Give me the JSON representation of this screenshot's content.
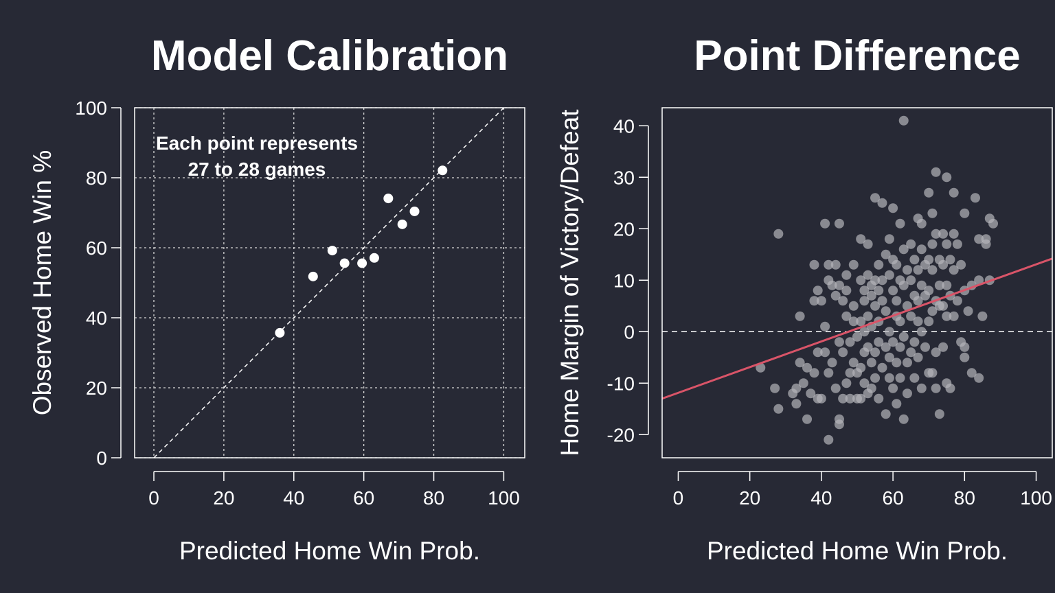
{
  "colors": {
    "background": "#272935",
    "foreground": "#ffffff",
    "point_right": "#b4b4b9",
    "fit_line": "#d95468"
  },
  "chart_data": [
    {
      "type": "scatter",
      "title": "Model Calibration",
      "xlabel": "Predicted Home Win Prob.",
      "ylabel": "Observed Home Win %",
      "xlim": [
        -5.5,
        106
      ],
      "ylim": [
        0,
        100
      ],
      "xticks": [
        0,
        20,
        40,
        60,
        80,
        100
      ],
      "yticks": [
        0,
        20,
        40,
        60,
        80,
        100
      ],
      "grid": true,
      "grid_values": [
        0,
        20,
        40,
        60,
        80,
        100
      ],
      "reference_line": "y = x (dashed)",
      "annotation": [
        "Each point represents",
        "27 to 28 games"
      ],
      "points": [
        {
          "x": 36,
          "y": 35.7
        },
        {
          "x": 45.5,
          "y": 51.8
        },
        {
          "x": 51,
          "y": 59.2
        },
        {
          "x": 54.5,
          "y": 55.6
        },
        {
          "x": 59.5,
          "y": 55.6
        },
        {
          "x": 63,
          "y": 57.1
        },
        {
          "x": 67,
          "y": 74.1
        },
        {
          "x": 71,
          "y": 66.7
        },
        {
          "x": 74.5,
          "y": 70.4
        },
        {
          "x": 82.5,
          "y": 82.1
        }
      ]
    },
    {
      "type": "scatter",
      "title": "Point Difference",
      "xlabel": "Predicted Home Win Prob.",
      "ylabel": "Home Margin of Victory/Defeat",
      "xlim": [
        -4.5,
        104.5
      ],
      "ylim": [
        -24.5,
        43.5
      ],
      "xticks": [
        0,
        20,
        40,
        60,
        80,
        100
      ],
      "yticks": [
        -20,
        -10,
        0,
        10,
        20,
        30,
        40
      ],
      "grid": false,
      "reference_line": "y = 0 (dashed)",
      "fit_line": {
        "x": [
          -4.5,
          104.5
        ],
        "y": [
          -13.0,
          14.2
        ]
      },
      "points": [
        {
          "x": 23,
          "y": -7
        },
        {
          "x": 28,
          "y": 19
        },
        {
          "x": 28,
          "y": -15
        },
        {
          "x": 27,
          "y": -11
        },
        {
          "x": 32,
          "y": -12
        },
        {
          "x": 33,
          "y": -11
        },
        {
          "x": 33,
          "y": -14
        },
        {
          "x": 34,
          "y": 3
        },
        {
          "x": 34,
          "y": -6
        },
        {
          "x": 35,
          "y": -10
        },
        {
          "x": 36,
          "y": -17
        },
        {
          "x": 36,
          "y": -7
        },
        {
          "x": 37,
          "y": -12
        },
        {
          "x": 38,
          "y": 13
        },
        {
          "x": 38,
          "y": 6
        },
        {
          "x": 38,
          "y": -8
        },
        {
          "x": 39,
          "y": 8
        },
        {
          "x": 39,
          "y": -4
        },
        {
          "x": 39,
          "y": -13
        },
        {
          "x": 40,
          "y": 6
        },
        {
          "x": 40,
          "y": -13
        },
        {
          "x": 41,
          "y": 1
        },
        {
          "x": 41,
          "y": 21
        },
        {
          "x": 41,
          "y": -4
        },
        {
          "x": 42,
          "y": 13
        },
        {
          "x": 42,
          "y": 10
        },
        {
          "x": 42,
          "y": -8
        },
        {
          "x": 42,
          "y": -21
        },
        {
          "x": 43,
          "y": 9
        },
        {
          "x": 43,
          "y": -6
        },
        {
          "x": 44,
          "y": 13
        },
        {
          "x": 44,
          "y": 7
        },
        {
          "x": 44,
          "y": -11
        },
        {
          "x": 45,
          "y": 21
        },
        {
          "x": 45,
          "y": 9
        },
        {
          "x": 45,
          "y": -2
        },
        {
          "x": 45,
          "y": -17
        },
        {
          "x": 45,
          "y": -18
        },
        {
          "x": 46,
          "y": 6
        },
        {
          "x": 46,
          "y": -13
        },
        {
          "x": 46,
          "y": -4
        },
        {
          "x": 47,
          "y": 8
        },
        {
          "x": 47,
          "y": 11
        },
        {
          "x": 47,
          "y": 3
        },
        {
          "x": 47,
          "y": -10
        },
        {
          "x": 48,
          "y": -2
        },
        {
          "x": 48,
          "y": -8
        },
        {
          "x": 48,
          "y": -13
        },
        {
          "x": 49,
          "y": 5
        },
        {
          "x": 49,
          "y": 13
        },
        {
          "x": 49,
          "y": 2
        },
        {
          "x": 49,
          "y": -6
        },
        {
          "x": 50,
          "y": -1
        },
        {
          "x": 50,
          "y": -8
        },
        {
          "x": 50,
          "y": -13
        },
        {
          "x": 51,
          "y": 18
        },
        {
          "x": 51,
          "y": 10
        },
        {
          "x": 51,
          "y": 2
        },
        {
          "x": 51,
          "y": -7
        },
        {
          "x": 51,
          "y": -13
        },
        {
          "x": 52,
          "y": 8
        },
        {
          "x": 52,
          "y": 6
        },
        {
          "x": 52,
          "y": 0
        },
        {
          "x": 52,
          "y": -4
        },
        {
          "x": 52,
          "y": -10
        },
        {
          "x": 53,
          "y": 17
        },
        {
          "x": 53,
          "y": 11
        },
        {
          "x": 53,
          "y": 3
        },
        {
          "x": 53,
          "y": -3
        },
        {
          "x": 53,
          "y": -12
        },
        {
          "x": 54,
          "y": 7
        },
        {
          "x": 54,
          "y": 9
        },
        {
          "x": 54,
          "y": 1
        },
        {
          "x": 54,
          "y": -6
        },
        {
          "x": 54,
          "y": -11
        },
        {
          "x": 55,
          "y": 10
        },
        {
          "x": 55,
          "y": 26
        },
        {
          "x": 55,
          "y": 5
        },
        {
          "x": 55,
          "y": -4
        },
        {
          "x": 55,
          "y": -9
        },
        {
          "x": 56,
          "y": 13
        },
        {
          "x": 56,
          "y": 8
        },
        {
          "x": 56,
          "y": 2
        },
        {
          "x": 56,
          "y": -2
        },
        {
          "x": 56,
          "y": -13
        },
        {
          "x": 57,
          "y": 25
        },
        {
          "x": 57,
          "y": 6
        },
        {
          "x": 57,
          "y": 10
        },
        {
          "x": 57,
          "y": -7
        },
        {
          "x": 58,
          "y": 15
        },
        {
          "x": 58,
          "y": 4
        },
        {
          "x": 58,
          "y": -3
        },
        {
          "x": 58,
          "y": -16
        },
        {
          "x": 59,
          "y": 18
        },
        {
          "x": 59,
          "y": 11
        },
        {
          "x": 59,
          "y": 0
        },
        {
          "x": 59,
          "y": -5
        },
        {
          "x": 59,
          "y": -9
        },
        {
          "x": 60,
          "y": 24
        },
        {
          "x": 60,
          "y": 14
        },
        {
          "x": 60,
          "y": 8
        },
        {
          "x": 60,
          "y": -2
        },
        {
          "x": 60,
          "y": -11
        },
        {
          "x": 61,
          "y": 13
        },
        {
          "x": 61,
          "y": 6
        },
        {
          "x": 61,
          "y": 3
        },
        {
          "x": 61,
          "y": -6
        },
        {
          "x": 61,
          "y": -14
        },
        {
          "x": 62,
          "y": 21
        },
        {
          "x": 62,
          "y": 10
        },
        {
          "x": 62,
          "y": 2
        },
        {
          "x": 62,
          "y": -3
        },
        {
          "x": 62,
          "y": -9
        },
        {
          "x": 63,
          "y": 41
        },
        {
          "x": 63,
          "y": 16
        },
        {
          "x": 63,
          "y": 9
        },
        {
          "x": 63,
          "y": -1
        },
        {
          "x": 63,
          "y": -17
        },
        {
          "x": 64,
          "y": 12
        },
        {
          "x": 64,
          "y": 5
        },
        {
          "x": 64,
          "y": -6
        },
        {
          "x": 64,
          "y": -12
        },
        {
          "x": 65,
          "y": 17
        },
        {
          "x": 65,
          "y": 10
        },
        {
          "x": 65,
          "y": 3
        },
        {
          "x": 65,
          "y": -4
        },
        {
          "x": 66,
          "y": 14
        },
        {
          "x": 66,
          "y": 7
        },
        {
          "x": 66,
          "y": -2
        },
        {
          "x": 66,
          "y": -9
        },
        {
          "x": 67,
          "y": 22
        },
        {
          "x": 67,
          "y": 12
        },
        {
          "x": 67,
          "y": 6
        },
        {
          "x": 67,
          "y": 2
        },
        {
          "x": 67,
          "y": -5
        },
        {
          "x": 68,
          "y": 21
        },
        {
          "x": 68,
          "y": 16
        },
        {
          "x": 68,
          "y": 9
        },
        {
          "x": 68,
          "y": 0
        },
        {
          "x": 68,
          "y": -11
        },
        {
          "x": 69,
          "y": 13
        },
        {
          "x": 69,
          "y": 7
        },
        {
          "x": 69,
          "y": -3
        },
        {
          "x": 70,
          "y": 27
        },
        {
          "x": 70,
          "y": 14
        },
        {
          "x": 70,
          "y": 8
        },
        {
          "x": 70,
          "y": 2
        },
        {
          "x": 70,
          "y": -8
        },
        {
          "x": 71,
          "y": 23
        },
        {
          "x": 71,
          "y": 17
        },
        {
          "x": 71,
          "y": 12
        },
        {
          "x": 71,
          "y": 4
        },
        {
          "x": 71,
          "y": -8
        },
        {
          "x": 72,
          "y": 31
        },
        {
          "x": 72,
          "y": 19
        },
        {
          "x": 72,
          "y": 6
        },
        {
          "x": 72,
          "y": -4
        },
        {
          "x": 72,
          "y": -11
        },
        {
          "x": 73,
          "y": 14
        },
        {
          "x": 73,
          "y": 9
        },
        {
          "x": 73,
          "y": 5
        },
        {
          "x": 73,
          "y": -16
        },
        {
          "x": 74,
          "y": 19
        },
        {
          "x": 74,
          "y": 13
        },
        {
          "x": 74,
          "y": 5
        },
        {
          "x": 74,
          "y": -3
        },
        {
          "x": 75,
          "y": 30
        },
        {
          "x": 75,
          "y": 17
        },
        {
          "x": 75,
          "y": 9
        },
        {
          "x": 75,
          "y": 3
        },
        {
          "x": 75,
          "y": -10
        },
        {
          "x": 76,
          "y": 14
        },
        {
          "x": 76,
          "y": 7
        },
        {
          "x": 76,
          "y": -11
        },
        {
          "x": 77,
          "y": 27
        },
        {
          "x": 77,
          "y": 19
        },
        {
          "x": 77,
          "y": 12
        },
        {
          "x": 77,
          "y": 3
        },
        {
          "x": 78,
          "y": 17
        },
        {
          "x": 78,
          "y": 6
        },
        {
          "x": 79,
          "y": 13
        },
        {
          "x": 79,
          "y": -2
        },
        {
          "x": 80,
          "y": 23
        },
        {
          "x": 80,
          "y": 8
        },
        {
          "x": 80,
          "y": -3
        },
        {
          "x": 80,
          "y": -5
        },
        {
          "x": 81,
          "y": 4
        },
        {
          "x": 82,
          "y": 9
        },
        {
          "x": 82,
          "y": -8
        },
        {
          "x": 83,
          "y": 26
        },
        {
          "x": 84,
          "y": 18
        },
        {
          "x": 84,
          "y": 10
        },
        {
          "x": 84,
          "y": -9
        },
        {
          "x": 85,
          "y": 3
        },
        {
          "x": 86,
          "y": 17
        },
        {
          "x": 86,
          "y": 18
        },
        {
          "x": 87,
          "y": 22
        },
        {
          "x": 87,
          "y": 10
        },
        {
          "x": 88,
          "y": 21
        }
      ]
    }
  ]
}
